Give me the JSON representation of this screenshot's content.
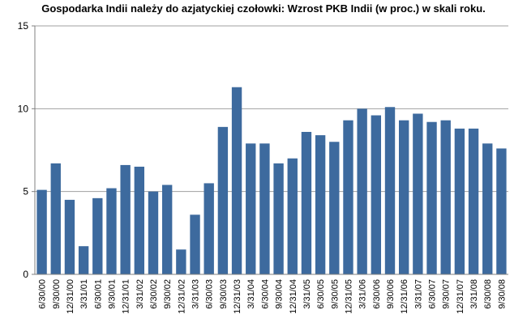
{
  "chart_data": {
    "type": "bar",
    "title": "Gospodarka Indii należy do azjatyckiej czołowki: Wzrost PKB Indii (w proc.) w skali roku.",
    "xlabel": "",
    "ylabel": "",
    "ylim": [
      0,
      15
    ],
    "yticks": [
      0,
      5,
      10,
      15
    ],
    "grid": true,
    "legend": "none",
    "bar_color": "#3d6a9e",
    "categories": [
      "6/30/00",
      "9/30/00",
      "12/31/00",
      "3/31/01",
      "6/30/01",
      "9/30/01",
      "12/31/01",
      "3/31/02",
      "6/30/02",
      "9/30/02",
      "12/31/02",
      "3/31/03",
      "6/30/03",
      "9/30/03",
      "12/31/03",
      "3/31/04",
      "6/30/04",
      "9/30/04",
      "12/31/04",
      "3/31/05",
      "6/30/05",
      "9/30/05",
      "12/31/05",
      "3/31/06",
      "6/30/06",
      "9/30/06",
      "12/31/06",
      "3/31/07",
      "6/30/07",
      "9/30/07",
      "12/31/07",
      "3/31/08",
      "6/30/08",
      "9/30/08"
    ],
    "values": [
      5.1,
      6.7,
      4.5,
      1.7,
      4.6,
      5.2,
      6.6,
      6.5,
      5.0,
      5.4,
      1.5,
      3.6,
      5.5,
      8.9,
      11.3,
      7.9,
      7.9,
      6.7,
      7.0,
      8.6,
      8.4,
      8.0,
      9.3,
      10.0,
      9.6,
      10.1,
      9.3,
      9.7,
      9.2,
      9.3,
      8.8,
      8.8,
      7.9,
      7.6
    ]
  }
}
